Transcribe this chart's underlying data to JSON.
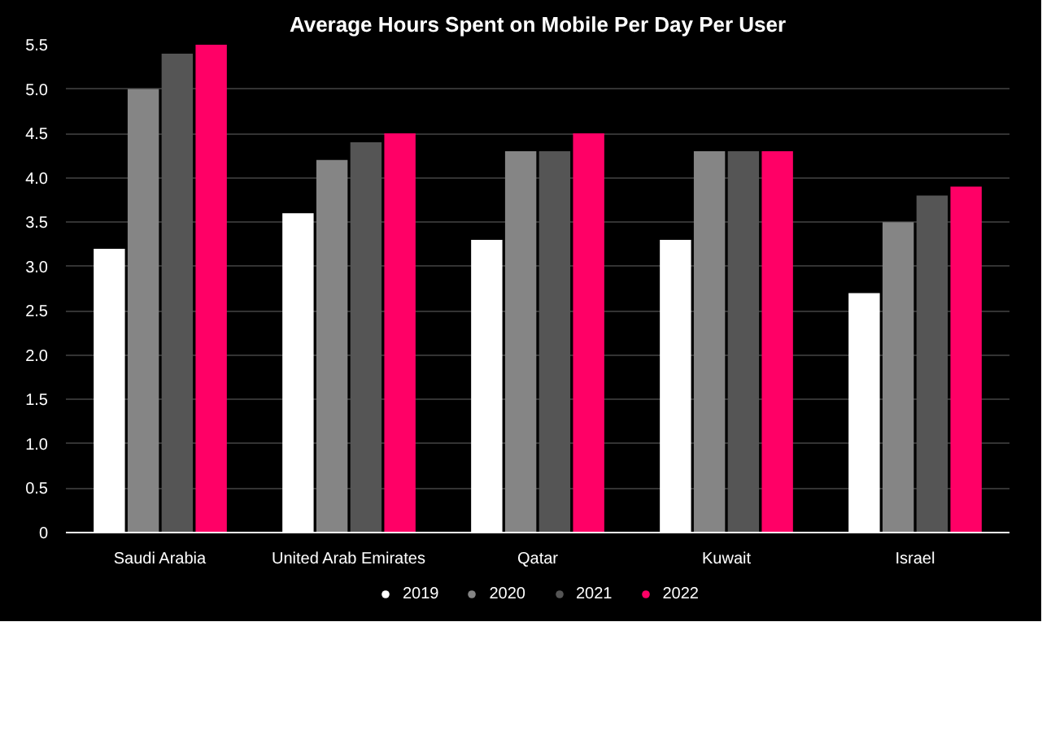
{
  "chart_data": {
    "type": "bar",
    "title": "Average Hours Spent on Mobile Per Day Per User",
    "categories": [
      "Saudi Arabia",
      "United Arab Emirates",
      "Qatar",
      "Kuwait",
      "Israel"
    ],
    "series": [
      {
        "name": "2019",
        "color": "#ffffff",
        "values": [
          3.2,
          3.6,
          3.3,
          3.3,
          2.7
        ]
      },
      {
        "name": "2020",
        "color": "#858585",
        "values": [
          5.0,
          4.2,
          4.3,
          4.3,
          3.5
        ]
      },
      {
        "name": "2021",
        "color": "#555555",
        "values": [
          5.4,
          4.4,
          4.3,
          4.3,
          3.8
        ]
      },
      {
        "name": "2022",
        "color": "#ff0066",
        "values": [
          5.5,
          4.5,
          4.5,
          4.3,
          3.9
        ]
      }
    ],
    "ylim": [
      0,
      5.5
    ],
    "yticks": [
      0,
      0.5,
      {
        "value": 1,
        "label": "1.0"
      },
      1.5,
      {
        "value": 2,
        "label": "2.0"
      },
      2.5,
      {
        "value": 3,
        "label": "3.0"
      },
      3.5,
      {
        "value": 4,
        "label": "4.0"
      },
      4.5,
      {
        "value": 5,
        "label": "5.0"
      },
      5.5
    ],
    "grid": "y",
    "legend": "bottom"
  }
}
